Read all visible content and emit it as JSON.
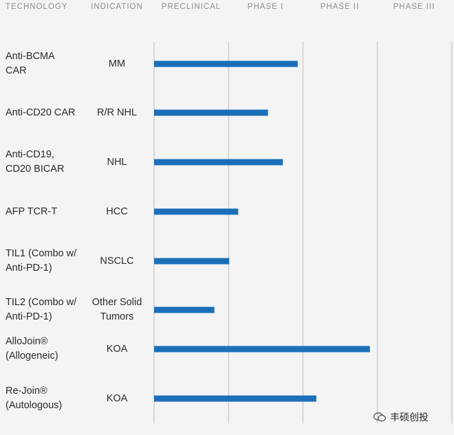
{
  "chart_data": {
    "type": "bar",
    "columns": [
      "TECHNOLOGY",
      "INDICATION",
      "PRECLINICAL",
      "PHASE I",
      "PHASE II",
      "PHASE III"
    ],
    "phase_axis": [
      "PRECLINICAL",
      "PHASE I",
      "PHASE II",
      "PHASE III"
    ],
    "xlim": [
      0,
      4
    ],
    "bar_color": "#1b6fb8",
    "grid": true,
    "rows": [
      {
        "technology": "Anti-BCMA\nCAR",
        "indication": "MM",
        "value": 1.93
      },
      {
        "technology": "Anti-CD20 CAR",
        "indication": "R/R NHL",
        "value": 1.53
      },
      {
        "technology": "Anti-CD19,\nCD20 BICAR",
        "indication": "NHL",
        "value": 1.73
      },
      {
        "technology": "AFP TCR-T",
        "indication": "HCC",
        "value": 1.13
      },
      {
        "technology": "TIL1 (Combo w/\nAnti-PD-1)",
        "indication": "NSCLC",
        "value": 1.01
      },
      {
        "technology": "TIL2 (Combo w/\nAnti-PD-1)",
        "indication": "Other Solid\nTumors",
        "value": 0.81
      },
      {
        "technology": "AlloJoin®\n(Allogeneic)",
        "indication": "KOA",
        "value": 2.9
      },
      {
        "technology": "Re-Join®\n(Autologous)",
        "indication": "KOA",
        "value": 2.18
      }
    ]
  },
  "watermark": {
    "text": "丰硕创投",
    "icon": "wechat-icon"
  }
}
